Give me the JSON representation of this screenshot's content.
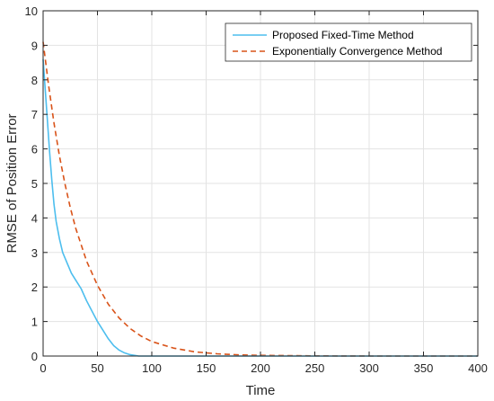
{
  "chart_data": {
    "type": "line",
    "title": "",
    "xlabel": "Time",
    "ylabel": "RMSE of Position Error",
    "xlim": [
      0,
      400
    ],
    "ylim": [
      0,
      10
    ],
    "xticks": [
      0,
      50,
      100,
      150,
      200,
      250,
      300,
      350,
      400
    ],
    "yticks": [
      0,
      1,
      2,
      3,
      4,
      5,
      6,
      7,
      8,
      9,
      10
    ],
    "grid": true,
    "legend_position": "top-right",
    "series": [
      {
        "name": "Proposed Fixed-Time Method",
        "color": "#4DBEEE",
        "line_style": "solid",
        "x": [
          0,
          2,
          4,
          6,
          8,
          10,
          12,
          15,
          18,
          22,
          26,
          30,
          35,
          40,
          45,
          50,
          55,
          60,
          65,
          70,
          75,
          80,
          85,
          88,
          90,
          100,
          150,
          200,
          250,
          300,
          350,
          400
        ],
        "y": [
          8.6,
          7.7,
          6.8,
          5.9,
          5.1,
          4.4,
          3.9,
          3.4,
          3.0,
          2.7,
          2.4,
          2.2,
          1.95,
          1.6,
          1.3,
          1.0,
          0.75,
          0.5,
          0.3,
          0.17,
          0.09,
          0.04,
          0.015,
          0.0,
          0.0,
          0.0,
          0.0,
          0.0,
          0.0,
          0.0,
          0.0,
          0.0
        ]
      },
      {
        "name": "Exponentially Convergence Method",
        "color": "#D95319",
        "line_style": "dashed",
        "x": [
          0,
          5,
          10,
          15,
          20,
          25,
          30,
          40,
          50,
          60,
          70,
          80,
          90,
          100,
          120,
          140,
          160,
          180,
          200,
          250,
          300,
          350,
          400
        ],
        "y": [
          9.1,
          7.85,
          6.75,
          5.8,
          5.0,
          4.3,
          3.7,
          2.75,
          2.05,
          1.5,
          1.1,
          0.8,
          0.58,
          0.42,
          0.23,
          0.12,
          0.065,
          0.035,
          0.02,
          0.005,
          0.0,
          0.0,
          0.0
        ]
      }
    ]
  }
}
